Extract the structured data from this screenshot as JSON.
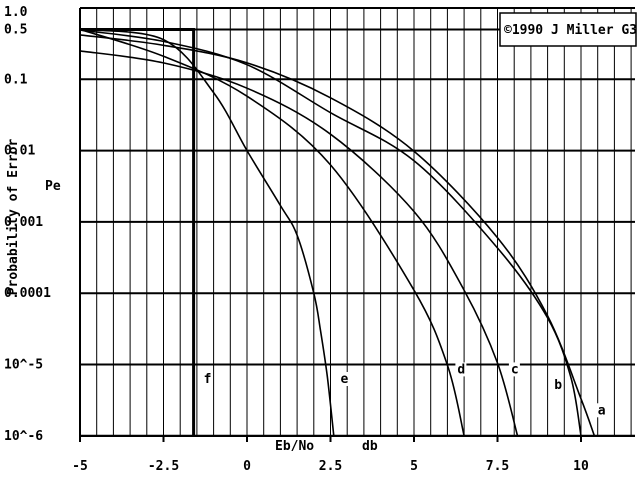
{
  "chart_data": {
    "type": "line",
    "title": "",
    "copyright": "©1990 J Miller G3",
    "xlabel": "Eb/No",
    "xunit": "db",
    "ylabel": "Probability of Error",
    "ylabel_short": "Pe",
    "xlim": [
      -5,
      11.7
    ],
    "ylim_log10": [
      -6,
      0
    ],
    "log_y": true,
    "grid": true,
    "x_ticks": [
      {
        "value": -5,
        "label": "-5"
      },
      {
        "value": -2.5,
        "label": "-2.5"
      },
      {
        "value": 0,
        "label": "0"
      },
      {
        "value": 2.5,
        "label": "2.5"
      },
      {
        "value": 5,
        "label": "5"
      },
      {
        "value": 7.5,
        "label": "7.5"
      },
      {
        "value": 10,
        "label": "10"
      }
    ],
    "y_ticks": [
      {
        "value": 1.0,
        "label": "1.0"
      },
      {
        "value": 0.5,
        "label": "0.5"
      },
      {
        "value": 0.1,
        "label": "0.1"
      },
      {
        "value": 0.01,
        "label": "0.01"
      },
      {
        "value": 0.001,
        "label": "0.001"
      },
      {
        "value": 0.0001,
        "label": "0.0001"
      },
      {
        "value": 1e-05,
        "label": "10^-5"
      },
      {
        "value": 1e-06,
        "label": "10^-6"
      }
    ],
    "series": [
      {
        "name": "a",
        "points": [
          [
            -5,
            0.42
          ],
          [
            -2.5,
            0.3
          ],
          [
            0,
            0.17
          ],
          [
            2.5,
            0.055
          ],
          [
            5,
            0.0098
          ],
          [
            7.5,
            0.0006
          ],
          [
            9,
            4.8e-05
          ],
          [
            10,
            3.3e-06
          ],
          [
            10.4,
            1e-06
          ]
        ]
      },
      {
        "name": "b",
        "points": [
          [
            -5,
            0.49
          ],
          [
            -2.5,
            0.34
          ],
          [
            0,
            0.16
          ],
          [
            2.5,
            0.034
          ],
          [
            5,
            0.0072
          ],
          [
            7.5,
            0.00043
          ],
          [
            9,
            4.5e-05
          ],
          [
            9.7,
            6.5e-06
          ],
          [
            10,
            1e-06
          ]
        ]
      },
      {
        "name": "c",
        "points": [
          [
            -5,
            0.25
          ],
          [
            -2.5,
            0.17
          ],
          [
            0,
            0.075
          ],
          [
            2.5,
            0.017
          ],
          [
            5,
            0.0014
          ],
          [
            6.5,
            0.00011
          ],
          [
            7.5,
            1.05e-05
          ],
          [
            8.1,
            1e-06
          ]
        ]
      },
      {
        "name": "d",
        "points": [
          [
            -5,
            0.5
          ],
          [
            -2.5,
            0.21
          ],
          [
            0,
            0.058
          ],
          [
            2.5,
            0.0063
          ],
          [
            5,
            0.00011
          ],
          [
            6,
            9.8e-06
          ],
          [
            6.5,
            1e-06
          ]
        ]
      },
      {
        "name": "e",
        "points": [
          [
            -5,
            0.5
          ],
          [
            -2.5,
            0.36
          ],
          [
            -1,
            0.065
          ],
          [
            0,
            0.01
          ],
          [
            1,
            0.0017
          ],
          [
            1.5,
            0.00065
          ],
          [
            2,
            0.0001
          ],
          [
            2.2,
            3e-05
          ],
          [
            2.4,
            7e-06
          ],
          [
            2.6,
            1e-06
          ]
        ]
      },
      {
        "name": "f",
        "shape": "step",
        "points": [
          [
            -5,
            0.5
          ],
          [
            -1.6,
            0.5
          ],
          [
            -1.6,
            1e-06
          ]
        ]
      }
    ],
    "curve_labels": [
      {
        "name": "a",
        "x": 10.5,
        "y": 2e-06
      },
      {
        "name": "b",
        "x": 9.2,
        "y": 4.5e-06
      },
      {
        "name": "c",
        "x": 7.9,
        "y": 7.5e-06
      },
      {
        "name": "d",
        "x": 6.3,
        "y": 7.5e-06
      },
      {
        "name": "e",
        "x": 2.8,
        "y": 5.5e-06
      },
      {
        "name": "f",
        "x": -1.3,
        "y": 5.5e-06
      }
    ]
  }
}
